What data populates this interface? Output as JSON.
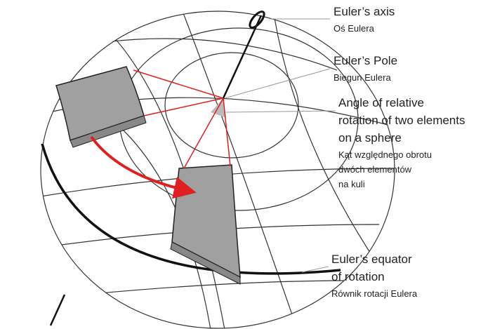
{
  "labels": [
    {
      "title": [
        "Euler’s axis"
      ],
      "subtitle": [
        "Oś Eulera"
      ]
    },
    {
      "title": [
        "Euler’s Pole"
      ],
      "subtitle": [
        "Biegun Eulera"
      ]
    },
    {
      "title": [
        "Angle of relative",
        "rotation of two elements",
        "on a sphere"
      ],
      "subtitle": [
        "Kąt względnego obrotu",
        "dwóch elementów",
        "na kuli"
      ]
    },
    {
      "title": [
        "Euler’s equator",
        "of rotation"
      ],
      "subtitle": [
        "Równik rotacji Eulera"
      ]
    }
  ]
}
